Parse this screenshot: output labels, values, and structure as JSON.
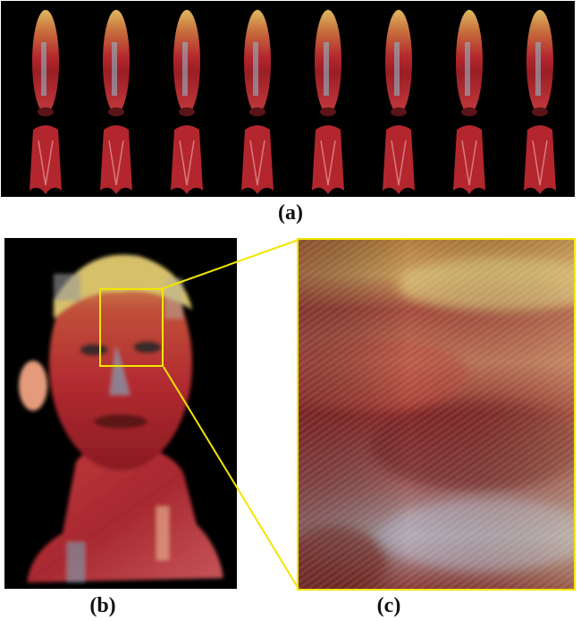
{
  "captions": {
    "a": "(a)",
    "b": "(b)",
    "c": "(c)"
  },
  "panel_a": {
    "figure_count": 8
  },
  "colors": {
    "highlight": "#f2e600",
    "background": "#000000",
    "muscle": "#b8292f",
    "hair": "#d9b25a"
  }
}
